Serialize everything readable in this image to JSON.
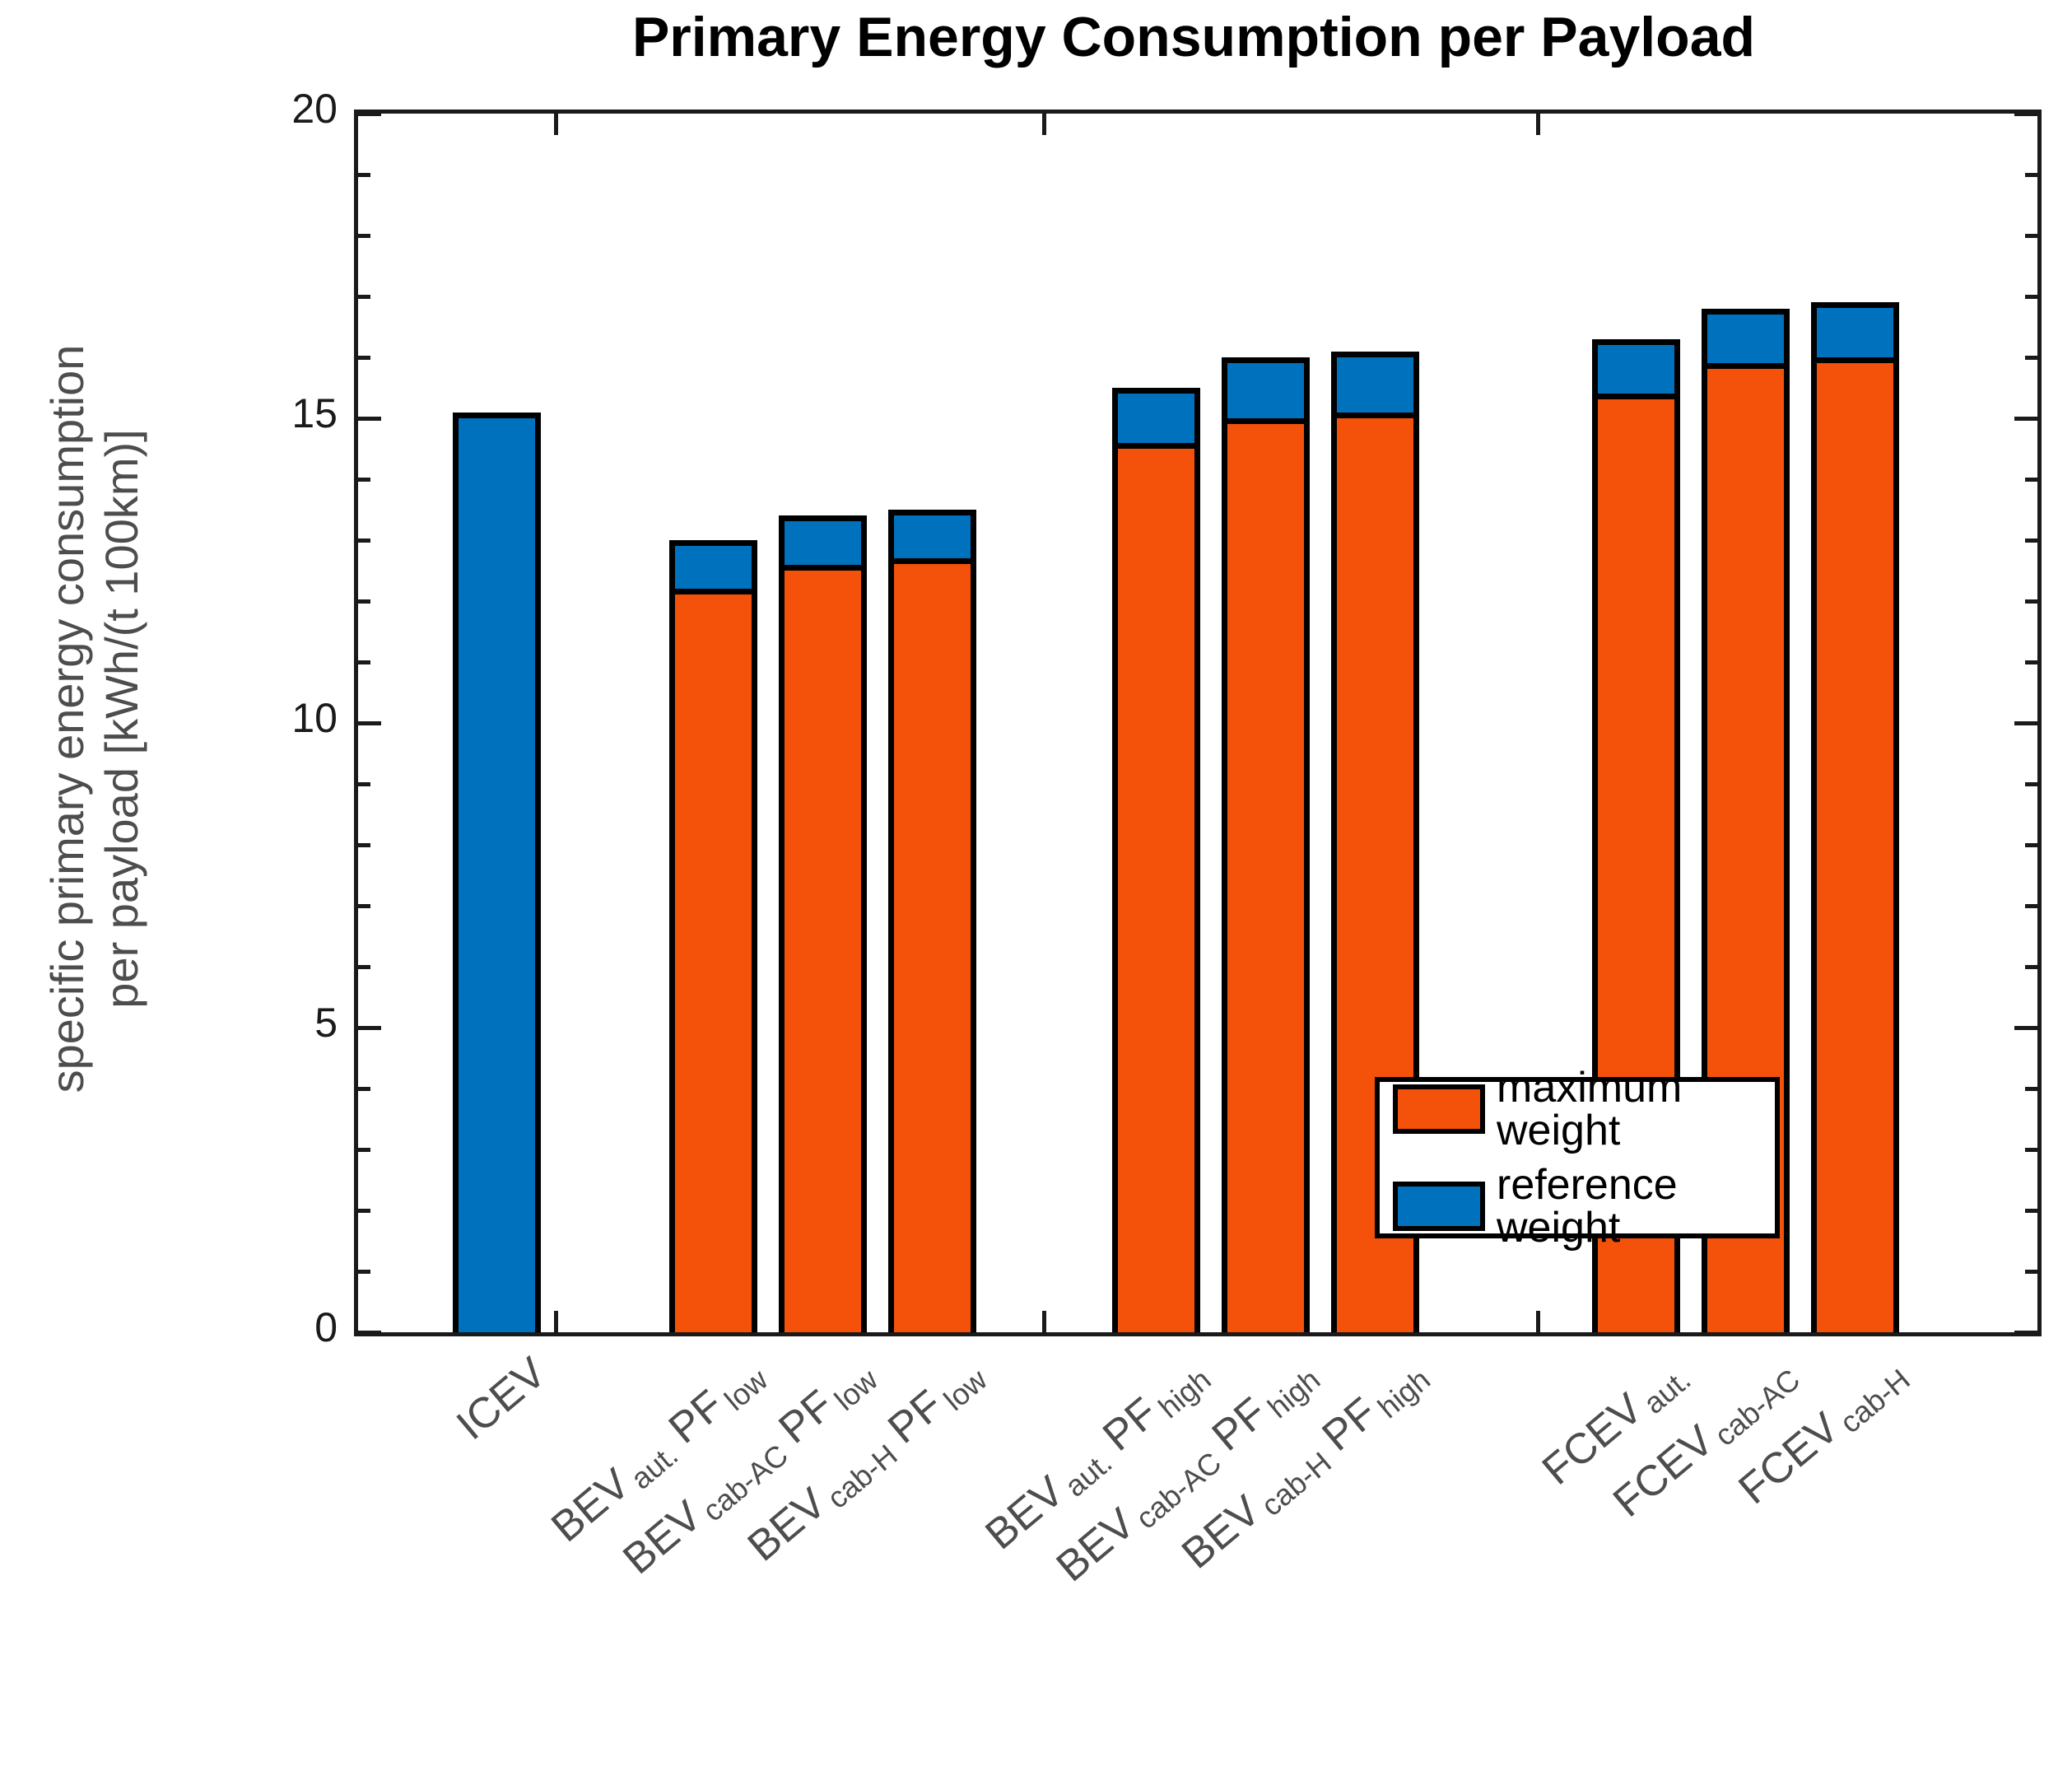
{
  "chart_data": {
    "type": "bar",
    "stacked": true,
    "title": "Primary Energy Consumption per Payload",
    "ylabel_lines": [
      "specific primary energy consumption",
      "per payload [kWh/(t 100km)]"
    ],
    "xlabel": "",
    "ylim": [
      0,
      20
    ],
    "ytick_labels": [
      "0",
      "5",
      "10",
      "15",
      "20"
    ],
    "ytick_values": [
      0,
      5,
      10,
      15,
      20
    ],
    "ytick_minor_step": 1,
    "grid": false,
    "legend_position": "lower right",
    "categories": [
      {
        "name": "ICEV",
        "parts": [
          {
            "text": "ICEV",
            "sub": false
          }
        ]
      },
      {
        "name": "BEV aut. PF low",
        "parts": [
          {
            "text": "BEV",
            "sub": false
          },
          {
            "text": "aut.",
            "sub": true
          },
          {
            "text": " PF",
            "sub": false
          },
          {
            "text": "low",
            "sub": true
          }
        ]
      },
      {
        "name": "BEV cab-AC PF low",
        "parts": [
          {
            "text": "BEV",
            "sub": false
          },
          {
            "text": "cab-AC",
            "sub": true
          },
          {
            "text": " PF",
            "sub": false
          },
          {
            "text": "low",
            "sub": true
          }
        ]
      },
      {
        "name": "BEV cab-H PF low",
        "parts": [
          {
            "text": "BEV",
            "sub": false
          },
          {
            "text": "cab-H",
            "sub": true
          },
          {
            "text": " PF",
            "sub": false
          },
          {
            "text": "low",
            "sub": true
          }
        ]
      },
      {
        "name": "BEV aut. PF high",
        "parts": [
          {
            "text": "BEV",
            "sub": false
          },
          {
            "text": "aut.",
            "sub": true
          },
          {
            "text": " PF",
            "sub": false
          },
          {
            "text": "high",
            "sub": true
          }
        ]
      },
      {
        "name": "BEV cab-AC PF high",
        "parts": [
          {
            "text": "BEV",
            "sub": false
          },
          {
            "text": "cab-AC",
            "sub": true
          },
          {
            "text": " PF",
            "sub": false
          },
          {
            "text": "high",
            "sub": true
          }
        ]
      },
      {
        "name": "BEV cab-H PF high",
        "parts": [
          {
            "text": "BEV",
            "sub": false
          },
          {
            "text": "cab-H",
            "sub": true
          },
          {
            "text": " PF",
            "sub": false
          },
          {
            "text": "high",
            "sub": true
          }
        ]
      },
      {
        "name": "FCEV aut.",
        "parts": [
          {
            "text": "FCEV",
            "sub": false
          },
          {
            "text": "aut.",
            "sub": true
          }
        ]
      },
      {
        "name": "FCEV cab-AC",
        "parts": [
          {
            "text": "FCEV",
            "sub": false
          },
          {
            "text": "cab-AC",
            "sub": true
          }
        ]
      },
      {
        "name": "FCEV cab-H",
        "parts": [
          {
            "text": "FCEV",
            "sub": false
          },
          {
            "text": "cab-H",
            "sub": true
          }
        ]
      }
    ],
    "series": [
      {
        "name": "maximum weight",
        "color": "#F4520B",
        "values": [
          null,
          12.2,
          12.6,
          12.7,
          14.6,
          15.0,
          15.1,
          15.4,
          15.9,
          16.0
        ],
        "note": "orange bar top (kWh/(t 100km))"
      },
      {
        "name": "reference weight",
        "color": "#0072BD",
        "values": [
          15.1,
          13.0,
          13.4,
          13.5,
          15.5,
          16.0,
          16.1,
          16.3,
          16.8,
          16.9
        ],
        "note": "blue segment top = total bar height (kWh/(t 100km)); ICEV bar is blue only"
      }
    ],
    "colors": {
      "orange": "#F4520B",
      "blue": "#0072BD",
      "axis": "#1a1a1a",
      "bar_outline": "#000000",
      "label_gray": "#4d4d4d"
    }
  }
}
